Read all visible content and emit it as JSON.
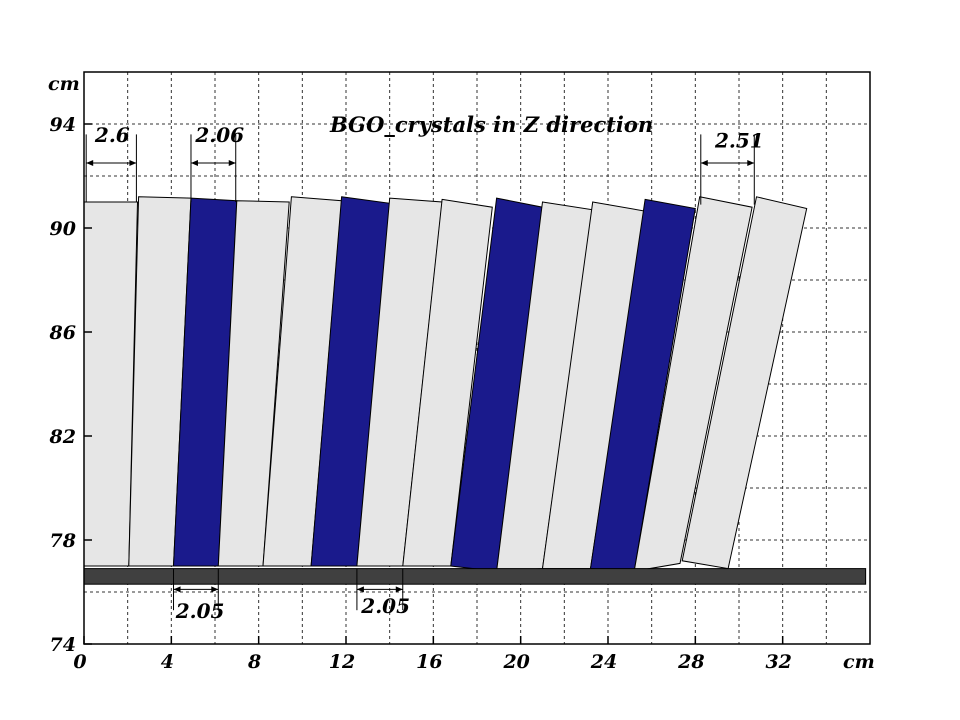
{
  "chart_data": {
    "type": "diagram",
    "title": "BGO_crystals in Z direction",
    "x_unit": "cm",
    "y_unit": "cm",
    "x_ticks": [
      0,
      4,
      8,
      12,
      16,
      20,
      24,
      28,
      32
    ],
    "y_ticks": [
      74,
      78,
      82,
      86,
      90,
      94
    ],
    "xlim": [
      0,
      36
    ],
    "ylim": [
      74,
      96
    ],
    "grid_step_x": 2,
    "grid_step_y": 2,
    "colors": {
      "light_crystal": "#e6e6e6",
      "dark_crystal": "#1a1a8c",
      "support_bar": "#404040",
      "outline": "#000000"
    },
    "crystals": [
      {
        "top_left": [
          0.0,
          91.0
        ],
        "top_right": [
          2.45,
          91.0
        ],
        "bottom_right": [
          2.05,
          77.0
        ],
        "bottom_left": [
          0.0,
          77.0
        ],
        "color": "light"
      },
      {
        "top_left": [
          2.5,
          91.2
        ],
        "top_right": [
          4.9,
          91.15
        ],
        "bottom_right": [
          4.1,
          77.0
        ],
        "bottom_left": [
          2.05,
          77.0
        ],
        "color": "light"
      },
      {
        "top_left": [
          4.9,
          91.15
        ],
        "top_right": [
          7.0,
          91.05
        ],
        "bottom_right": [
          6.15,
          77.0
        ],
        "bottom_left": [
          4.1,
          77.0
        ],
        "color": "dark"
      },
      {
        "top_left": [
          7.0,
          91.05
        ],
        "top_right": [
          9.4,
          91.0
        ],
        "bottom_right": [
          8.2,
          77.0
        ],
        "bottom_left": [
          6.15,
          77.0
        ],
        "color": "light"
      },
      {
        "top_left": [
          9.5,
          91.2
        ],
        "top_right": [
          11.8,
          91.05
        ],
        "bottom_right": [
          10.4,
          77.0
        ],
        "bottom_left": [
          8.2,
          77.0
        ],
        "color": "light"
      },
      {
        "top_left": [
          11.8,
          91.2
        ],
        "top_right": [
          14.0,
          90.95
        ],
        "bottom_right": [
          12.5,
          77.0
        ],
        "bottom_left": [
          10.4,
          77.0
        ],
        "color": "dark"
      },
      {
        "top_left": [
          14.0,
          91.15
        ],
        "top_right": [
          16.4,
          91.0
        ],
        "bottom_right": [
          14.6,
          77.0
        ],
        "bottom_left": [
          12.5,
          77.0
        ],
        "color": "light"
      },
      {
        "top_left": [
          16.4,
          91.1
        ],
        "top_right": [
          18.7,
          90.8
        ],
        "bottom_right": [
          16.8,
          77.0
        ],
        "bottom_left": [
          14.6,
          77.0
        ],
        "color": "light"
      },
      {
        "top_left": [
          18.9,
          91.15
        ],
        "top_right": [
          21.0,
          90.8
        ],
        "bottom_right": [
          18.9,
          76.8
        ],
        "bottom_left": [
          16.8,
          77.0
        ],
        "color": "dark"
      },
      {
        "top_left": [
          21.0,
          91.0
        ],
        "top_right": [
          23.3,
          90.7
        ],
        "bottom_right": [
          21.0,
          76.9
        ],
        "bottom_left": [
          18.9,
          76.8
        ],
        "color": "light"
      },
      {
        "top_left": [
          23.3,
          91.0
        ],
        "top_right": [
          25.7,
          90.65
        ],
        "bottom_right": [
          23.2,
          76.9
        ],
        "bottom_left": [
          21.0,
          76.9
        ],
        "color": "light"
      },
      {
        "top_left": [
          25.7,
          91.1
        ],
        "top_right": [
          28.0,
          90.75
        ],
        "bottom_right": [
          25.2,
          76.8
        ],
        "bottom_left": [
          23.2,
          76.9
        ],
        "color": "dark"
      },
      {
        "top_left": [
          28.2,
          91.2
        ],
        "top_right": [
          30.6,
          90.8
        ],
        "bottom_right": [
          27.3,
          77.1
        ],
        "bottom_left": [
          25.2,
          76.8
        ],
        "color": "light"
      },
      {
        "top_left": [
          30.8,
          91.2
        ],
        "top_right": [
          33.1,
          90.75
        ],
        "bottom_right": [
          29.5,
          76.9
        ],
        "bottom_left": [
          27.4,
          77.2
        ],
        "color": "light"
      }
    ],
    "support_bar": {
      "x0": 0,
      "x1": 35.8,
      "y0": 76.3,
      "y1": 76.9
    },
    "dimensions": [
      {
        "text": "2.6",
        "x0": 0.1,
        "x1": 2.4,
        "y": 92.5,
        "tick_top": 93.6,
        "tick_bottom": 91.0,
        "label_x": 0.5,
        "label_y": 93.3
      },
      {
        "text": "2.06",
        "x0": 4.9,
        "x1": 6.95,
        "y": 92.5,
        "tick_top": 93.6,
        "tick_bottom": 91.0,
        "label_x": 5.1,
        "label_y": 93.3
      },
      {
        "text": "2.51",
        "x0": 28.25,
        "x1": 30.7,
        "y": 92.5,
        "tick_top": 93.6,
        "tick_bottom": 90.9,
        "label_x": 28.9,
        "label_y": 93.1
      },
      {
        "text": "2.05",
        "x0": 4.1,
        "x1": 6.15,
        "y": 76.1,
        "tick_top": 76.9,
        "tick_bottom": 75.3,
        "label_x": 4.2,
        "label_y": 75.0
      },
      {
        "text": "2.05",
        "x0": 12.5,
        "x1": 14.6,
        "y": 76.1,
        "tick_top": 76.9,
        "tick_bottom": 75.3,
        "label_x": 12.7,
        "label_y": 75.2
      }
    ]
  }
}
